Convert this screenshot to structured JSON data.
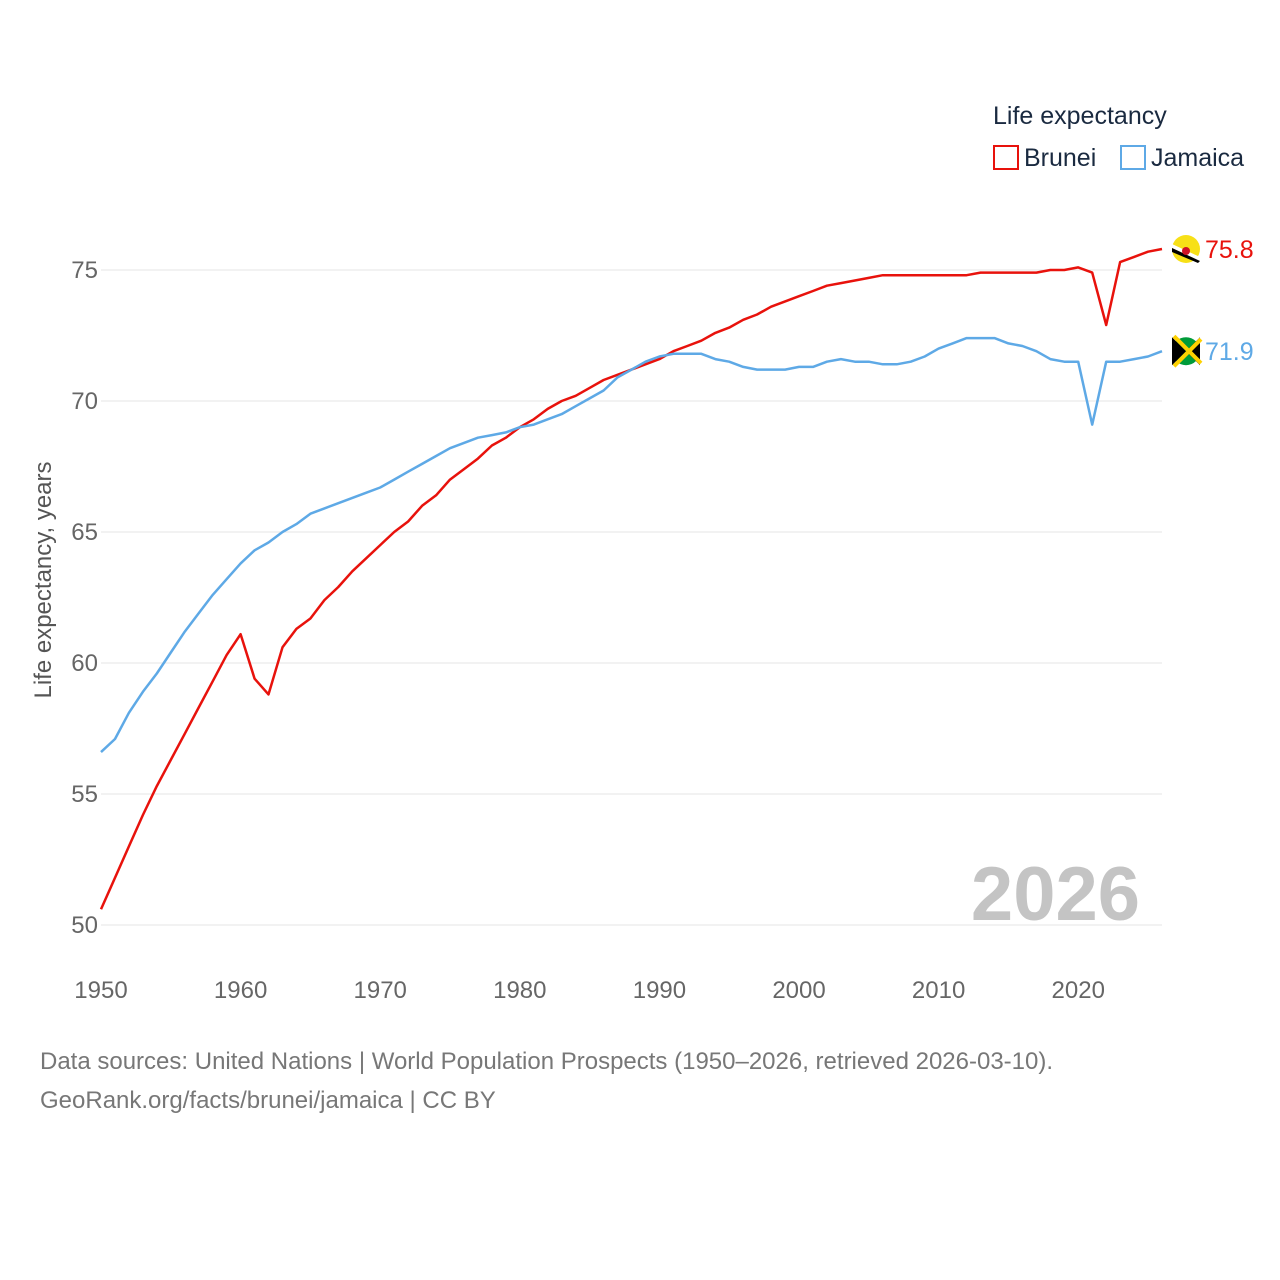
{
  "chart_data": {
    "type": "line",
    "title": "",
    "xlabel": "",
    "ylabel": "Life expectancy, years",
    "xlim": [
      1950,
      2026
    ],
    "ylim": [
      50,
      76
    ],
    "xticks": [
      "1950",
      "1960",
      "1970",
      "1980",
      "1990",
      "2000",
      "2010",
      "2020"
    ],
    "yticks": [
      "50",
      "55",
      "60",
      "65",
      "70",
      "75"
    ],
    "legend_title": "Life expectancy",
    "year_label": "2026",
    "x": [
      1950,
      1951,
      1952,
      1953,
      1954,
      1955,
      1956,
      1957,
      1958,
      1959,
      1960,
      1961,
      1962,
      1963,
      1964,
      1965,
      1966,
      1967,
      1968,
      1969,
      1970,
      1971,
      1972,
      1973,
      1974,
      1975,
      1976,
      1977,
      1978,
      1979,
      1980,
      1981,
      1982,
      1983,
      1984,
      1985,
      1986,
      1987,
      1988,
      1989,
      1990,
      1991,
      1992,
      1993,
      1994,
      1995,
      1996,
      1997,
      1998,
      1999,
      2000,
      2001,
      2002,
      2003,
      2004,
      2005,
      2006,
      2007,
      2008,
      2009,
      2010,
      2011,
      2012,
      2013,
      2014,
      2015,
      2016,
      2017,
      2018,
      2019,
      2020,
      2021,
      2022,
      2023,
      2024,
      2025,
      2026
    ],
    "series": [
      {
        "name": "Brunei",
        "color": "#e8120c",
        "end_label": "75.8",
        "flag_icon": "brunei-flag-icon",
        "values": [
          50.6,
          51.8,
          53.0,
          54.2,
          55.3,
          56.3,
          57.3,
          58.3,
          59.3,
          60.3,
          61.1,
          59.4,
          58.8,
          60.6,
          61.3,
          61.7,
          62.4,
          62.9,
          63.5,
          64.0,
          64.5,
          65.0,
          65.4,
          66.0,
          66.4,
          67.0,
          67.4,
          67.8,
          68.3,
          68.6,
          69.0,
          69.3,
          69.7,
          70.0,
          70.2,
          70.5,
          70.8,
          71.0,
          71.2,
          71.4,
          71.6,
          71.9,
          72.1,
          72.3,
          72.6,
          72.8,
          73.1,
          73.3,
          73.6,
          73.8,
          74.0,
          74.2,
          74.4,
          74.5,
          74.6,
          74.7,
          74.8,
          74.8,
          74.8,
          74.8,
          74.8,
          74.8,
          74.8,
          74.9,
          74.9,
          74.9,
          74.9,
          74.9,
          75.0,
          75.0,
          75.1,
          74.9,
          72.9,
          75.3,
          75.5,
          75.7,
          75.8
        ]
      },
      {
        "name": "Jamaica",
        "color": "#5ea9e6",
        "end_label": "71.9",
        "flag_icon": "jamaica-flag-icon",
        "values": [
          56.6,
          57.1,
          58.1,
          58.9,
          59.6,
          60.4,
          61.2,
          61.9,
          62.6,
          63.2,
          63.8,
          64.3,
          64.6,
          65.0,
          65.3,
          65.7,
          65.9,
          66.1,
          66.3,
          66.5,
          66.7,
          67.0,
          67.3,
          67.6,
          67.9,
          68.2,
          68.4,
          68.6,
          68.7,
          68.8,
          69.0,
          69.1,
          69.3,
          69.5,
          69.8,
          70.1,
          70.4,
          70.9,
          71.2,
          71.5,
          71.7,
          71.8,
          71.8,
          71.8,
          71.6,
          71.5,
          71.3,
          71.2,
          71.2,
          71.2,
          71.3,
          71.3,
          71.5,
          71.6,
          71.5,
          71.5,
          71.4,
          71.4,
          71.5,
          71.7,
          72.0,
          72.2,
          72.4,
          72.4,
          72.4,
          72.2,
          72.1,
          71.9,
          71.6,
          71.5,
          71.5,
          69.1,
          71.5,
          71.5,
          71.6,
          71.7,
          71.9
        ]
      }
    ]
  },
  "footer": {
    "source_line": "Data sources: United Nations | World Population Prospects (1950–2026, retrieved 2026-03-10).",
    "credit_line": "GeoRank.org/facts/brunei/jamaica | CC BY"
  }
}
